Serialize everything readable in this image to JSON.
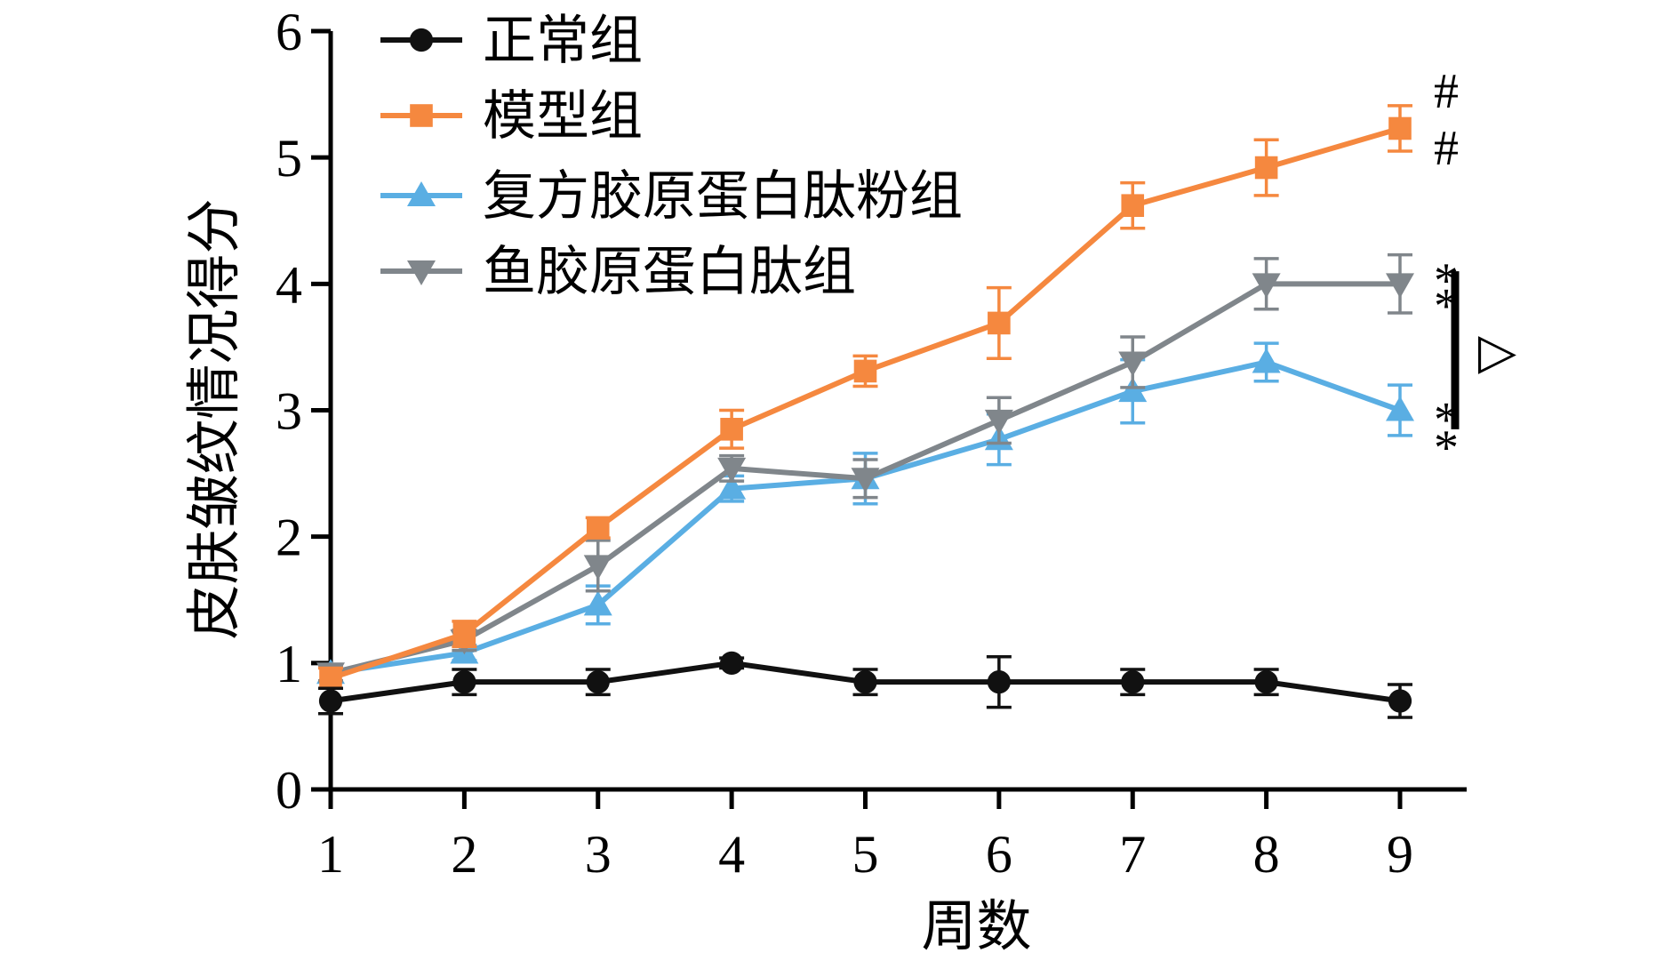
{
  "chart_data": {
    "type": "line",
    "xlabel": "周数",
    "ylabel": "皮肤皱纹情况得分",
    "x": [
      1,
      2,
      3,
      4,
      5,
      6,
      7,
      8,
      9
    ],
    "xlim": [
      1,
      9
    ],
    "ylim": [
      0,
      6
    ],
    "yticks": [
      0,
      1,
      2,
      3,
      4,
      5,
      6
    ],
    "grid": false,
    "legend_position": "top-left",
    "series": [
      {
        "name": "正常组",
        "color": "#111111",
        "marker": "circle",
        "values": [
          0.7,
          0.85,
          0.85,
          1.0,
          0.85,
          0.85,
          0.85,
          0.85,
          0.7
        ],
        "errors": [
          0.1,
          0.1,
          0.1,
          0.04,
          0.1,
          0.2,
          0.1,
          0.1,
          0.13
        ]
      },
      {
        "name": "模型组",
        "color": "#F5883F",
        "marker": "square",
        "values": [
          0.88,
          1.23,
          2.07,
          2.85,
          3.31,
          3.69,
          4.62,
          4.92,
          5.23
        ],
        "errors": [
          0.08,
          0.1,
          0.08,
          0.15,
          0.12,
          0.28,
          0.18,
          0.22,
          0.18
        ]
      },
      {
        "name": "复方胶原蛋白肽粉组",
        "color": "#5AAEE3",
        "marker": "triangle-up",
        "values": [
          0.92,
          1.08,
          1.46,
          2.38,
          2.46,
          2.77,
          3.15,
          3.38,
          3.0
        ],
        "errors": [
          0.06,
          0.06,
          0.15,
          0.1,
          0.2,
          0.2,
          0.25,
          0.15,
          0.2
        ]
      },
      {
        "name": "鱼胶原蛋白肽组",
        "color": "#80868B",
        "marker": "triangle-down",
        "values": [
          0.92,
          1.18,
          1.77,
          2.54,
          2.46,
          2.92,
          3.38,
          4.0,
          4.0
        ],
        "errors": [
          0.06,
          0.08,
          0.2,
          0.1,
          0.15,
          0.18,
          0.2,
          0.2,
          0.23
        ]
      }
    ],
    "annotations": [
      {
        "text": "#",
        "x": 9,
        "y": 5.55
      },
      {
        "text": "#",
        "x": 9,
        "y": 5.1
      },
      {
        "text": "*",
        "x": 9,
        "y": 4.05
      },
      {
        "text": "*",
        "x": 9,
        "y": 3.85
      },
      {
        "text": "*",
        "x": 9,
        "y": 2.95
      },
      {
        "text": "*",
        "x": 9,
        "y": 2.73
      },
      {
        "text": "▽",
        "x": 9,
        "y": 3.45
      }
    ],
    "bracket": {
      "y_from": 2.85,
      "y_to": 4.1
    }
  }
}
